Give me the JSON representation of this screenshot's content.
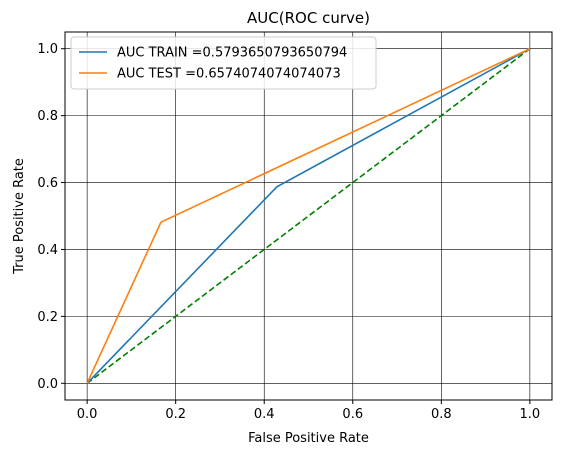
{
  "chart_data": {
    "type": "line",
    "title": "AUC(ROC curve)",
    "xlabel": "False Positive Rate",
    "ylabel": "True Positive Rate",
    "xlim": [
      -0.05,
      1.05
    ],
    "ylim": [
      -0.05,
      1.05
    ],
    "xticks": [
      "0.0",
      "0.2",
      "0.4",
      "0.6",
      "0.8",
      "1.0"
    ],
    "yticks": [
      "0.0",
      "0.2",
      "0.4",
      "0.6",
      "0.8",
      "1.0"
    ],
    "grid": true,
    "legend_position": "top-left",
    "series": [
      {
        "name": "AUC TRAIN =0.5793650793650794",
        "color": "#1f77b4",
        "dash": "solid",
        "x": [
          0.0,
          0.4286,
          1.0
        ],
        "y": [
          0.0,
          0.5873,
          1.0
        ]
      },
      {
        "name": "AUC TEST =0.6574074074074073",
        "color": "#ff7f0e",
        "dash": "solid",
        "x": [
          0.0,
          0.1667,
          1.0
        ],
        "y": [
          0.0,
          0.4815,
          1.0
        ]
      },
      {
        "name": "",
        "color": "#008000",
        "dash": "dashed",
        "x": [
          0.0,
          1.0
        ],
        "y": [
          0.0,
          1.0
        ]
      }
    ]
  }
}
